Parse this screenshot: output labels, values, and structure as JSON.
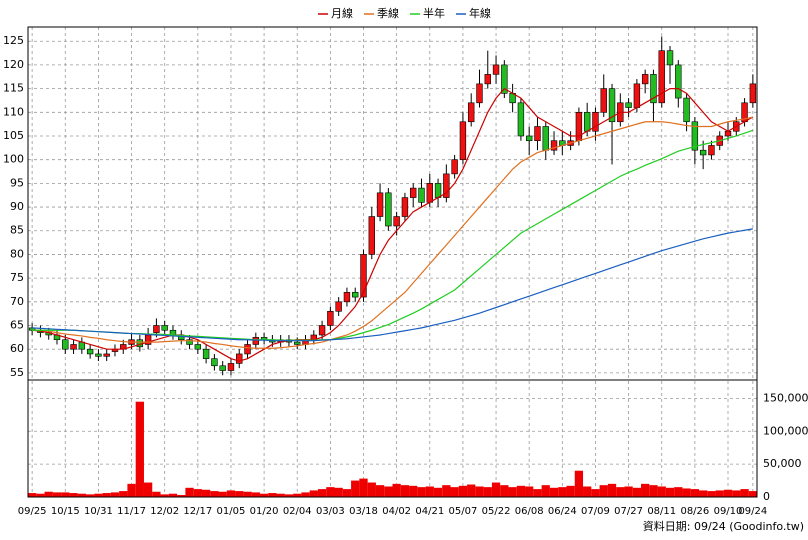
{
  "chart_data": {
    "type": "candlestick",
    "categories": [
      "09/25",
      null,
      null,
      null,
      "10/15",
      null,
      null,
      null,
      "10/31",
      null,
      null,
      null,
      "11/17",
      null,
      null,
      null,
      "12/02",
      null,
      null,
      null,
      "12/17",
      null,
      null,
      null,
      "01/05",
      null,
      null,
      null,
      "01/20",
      null,
      null,
      null,
      "02/04",
      null,
      null,
      null,
      "03/03",
      null,
      null,
      null,
      "03/18",
      null,
      null,
      null,
      "04/02",
      null,
      null,
      null,
      "04/21",
      null,
      null,
      null,
      "05/07",
      null,
      null,
      null,
      "05/22",
      null,
      null,
      null,
      "06/08",
      null,
      null,
      null,
      "06/24",
      null,
      null,
      null,
      "07/09",
      null,
      null,
      null,
      "07/27",
      null,
      null,
      null,
      "08/11",
      null,
      null,
      null,
      "08/26",
      null,
      null,
      null,
      "09/10",
      null,
      null,
      "09/24"
    ],
    "open": [
      64.5,
      64,
      63.5,
      63,
      62,
      60,
      61.5,
      60,
      59,
      58.5,
      59.5,
      60,
      61,
      62,
      61,
      63.5,
      65,
      64,
      63,
      62,
      61,
      60,
      58,
      56.5,
      55.5,
      57,
      59,
      61,
      62.5,
      62,
      61.5,
      62,
      61.5,
      61,
      62,
      63,
      65,
      68,
      70,
      72,
      71,
      80,
      88,
      93,
      86,
      88,
      92,
      94,
      91,
      95,
      92,
      97,
      100,
      108,
      112,
      116,
      118,
      120,
      114,
      112,
      105,
      104,
      107,
      102,
      104,
      103,
      104,
      110,
      106,
      110,
      115,
      108,
      112,
      111,
      116,
      118,
      112,
      123,
      120,
      113,
      108,
      102,
      101,
      103,
      105,
      106,
      108,
      112
    ],
    "high": [
      65.5,
      65,
      64.5,
      64,
      63,
      62,
      62.5,
      61,
      60,
      60,
      61,
      62,
      63.5,
      63,
      64.5,
      66.5,
      66,
      65,
      64,
      63,
      62,
      61,
      59,
      57.5,
      58,
      60,
      62,
      63.5,
      63.5,
      63,
      63,
      63,
      62.5,
      63,
      64,
      66,
      69,
      71,
      73,
      73,
      81,
      90,
      95,
      94,
      89,
      93,
      95,
      96,
      97,
      96,
      99,
      101,
      110,
      114,
      119,
      123,
      122,
      121,
      116,
      113,
      107,
      109,
      108,
      106,
      106,
      106,
      111,
      112,
      111,
      118,
      116,
      114,
      113,
      117,
      119,
      119,
      126,
      124,
      121,
      114,
      109,
      104,
      104,
      106,
      108,
      109,
      113,
      118
    ],
    "low": [
      63,
      62.5,
      62,
      61,
      59,
      59,
      59,
      58,
      57.5,
      57.5,
      58.5,
      59,
      60,
      59.5,
      60,
      62.5,
      63,
      62,
      61,
      60,
      59,
      57,
      55.5,
      54.5,
      54.5,
      56,
      58,
      60,
      61,
      60.5,
      60.5,
      60.5,
      60,
      60,
      61,
      62,
      64,
      67,
      69,
      70,
      70,
      79,
      87,
      85,
      84,
      87,
      90,
      90,
      90,
      90,
      91,
      96,
      99,
      107,
      111,
      115,
      116,
      113,
      110,
      104,
      101,
      102,
      100,
      101,
      101,
      102,
      103,
      105,
      104,
      109,
      99,
      107,
      109,
      110,
      114,
      108,
      111,
      116,
      111,
      106,
      99,
      98,
      100,
      102,
      104,
      105,
      107,
      111
    ],
    "close": [
      64,
      63.5,
      63,
      62,
      60,
      61,
      60,
      59,
      58.5,
      59,
      60,
      61,
      62,
      60.5,
      63,
      65,
      64,
      63,
      62,
      61,
      60,
      58,
      56.5,
      55.5,
      57,
      59,
      61,
      62.5,
      62,
      61.5,
      62,
      61.5,
      61,
      62,
      63,
      65,
      68,
      70,
      72,
      71,
      80,
      88,
      93,
      86,
      88,
      92,
      94,
      91,
      95,
      92,
      97,
      100,
      108,
      112,
      116,
      118,
      120,
      114,
      112,
      105,
      104,
      107,
      102,
      104,
      103,
      104,
      110,
      106,
      110,
      115,
      108,
      112,
      111,
      116,
      118,
      112,
      123,
      120,
      113,
      108,
      102,
      101,
      103,
      105,
      106,
      108,
      112,
      116
    ],
    "up_color": "#ee1111",
    "down_color": "#22bb22",
    "series": [
      {
        "name": "月線",
        "color": "#cc0000",
        "values": [
          64,
          63.8,
          63.5,
          63,
          62.5,
          62,
          61.5,
          61,
          60.5,
          60,
          60,
          60,
          60.5,
          61,
          61.5,
          62,
          62.5,
          63,
          63,
          62.5,
          62,
          61,
          60,
          59,
          58,
          57.5,
          58,
          59,
          60,
          61,
          61.5,
          61.8,
          62,
          62,
          62,
          62.5,
          63.5,
          65,
          67,
          69,
          72,
          76,
          80,
          83,
          85,
          87,
          89,
          90,
          91,
          92,
          93,
          95,
          98,
          102,
          106,
          110,
          113,
          115,
          114,
          113,
          111,
          109,
          108,
          107,
          106,
          105,
          105,
          106,
          107,
          108,
          109,
          110,
          110,
          111,
          112,
          113,
          114,
          115,
          115,
          114,
          112,
          110,
          108,
          107,
          106,
          107,
          108,
          109
        ]
      },
      {
        "name": "季線",
        "color": "#e07020",
        "values": [
          64,
          64,
          63.8,
          63.5,
          63.2,
          63,
          62.8,
          62.5,
          62.3,
          62,
          61.8,
          61.6,
          61.5,
          61.5,
          61.5,
          61.5,
          61.6,
          61.7,
          61.8,
          61.8,
          61.7,
          61.5,
          61.2,
          61,
          60.7,
          60.5,
          60.3,
          60.2,
          60.2,
          60.2,
          60.3,
          60.5,
          60.7,
          61,
          61.2,
          61.5,
          62,
          62.5,
          63,
          63.8,
          64.8,
          66,
          67.5,
          69,
          70.5,
          72,
          74,
          76,
          78,
          80,
          82,
          84,
          86,
          88,
          90,
          92,
          94,
          96,
          98,
          99.5,
          100.5,
          101.5,
          102,
          102.5,
          103,
          103.5,
          104,
          104.5,
          105,
          105.5,
          106,
          106.5,
          107,
          107.5,
          108,
          108,
          108,
          107.8,
          107.5,
          107.2,
          107,
          107,
          107,
          107.5,
          108,
          108.3,
          108.6,
          109
        ]
      },
      {
        "name": "半年",
        "color": "#22cc22",
        "values": [
          64,
          64,
          64,
          64,
          64,
          64,
          63.9,
          63.8,
          63.7,
          63.6,
          63.5,
          63.4,
          63.3,
          63.3,
          63.2,
          63.2,
          63.1,
          63,
          62.9,
          62.8,
          62.7,
          62.6,
          62.5,
          62.4,
          62.3,
          62.2,
          62.1,
          62,
          62,
          62,
          61.9,
          61.9,
          61.9,
          61.9,
          61.9,
          62,
          62,
          62.3,
          62.6,
          63,
          63.5,
          64,
          64.6,
          65.2,
          66,
          66.8,
          67.6,
          68.5,
          69.5,
          70.5,
          71.5,
          72.5,
          74,
          75.5,
          77,
          78.5,
          80,
          81.5,
          83,
          84.5,
          85.5,
          86.5,
          87.5,
          88.5,
          89.5,
          90.5,
          91.5,
          92.5,
          93.5,
          94.5,
          95.5,
          96.5,
          97.3,
          98,
          98.8,
          99.5,
          100.2,
          101,
          101.8,
          102.3,
          102.8,
          103.2,
          103.6,
          104,
          104.5,
          105,
          105.6,
          106.2
        ]
      },
      {
        "name": "年線",
        "color": "#1a5fc0",
        "values": [
          64.5,
          64.4,
          64.3,
          64.2,
          64.1,
          64,
          63.9,
          63.8,
          63.7,
          63.6,
          63.5,
          63.4,
          63.3,
          63.2,
          63.1,
          63,
          62.9,
          62.8,
          62.7,
          62.6,
          62.5,
          62.4,
          62.3,
          62.2,
          62.1,
          62,
          62,
          61.9,
          61.9,
          61.8,
          61.8,
          61.8,
          61.8,
          61.8,
          61.8,
          61.9,
          62,
          62.1,
          62.2,
          62.4,
          62.6,
          62.8,
          63,
          63.3,
          63.6,
          63.9,
          64.2,
          64.5,
          64.9,
          65.3,
          65.7,
          66.1,
          66.6,
          67.1,
          67.6,
          68.2,
          68.8,
          69.4,
          70,
          70.6,
          71.2,
          71.8,
          72.4,
          73,
          73.6,
          74.2,
          74.8,
          75.4,
          76,
          76.6,
          77.2,
          77.8,
          78.4,
          79,
          79.6,
          80.2,
          80.8,
          81.3,
          81.8,
          82.3,
          82.8,
          83.3,
          83.7,
          84.1,
          84.5,
          84.8,
          85.1,
          85.4
        ]
      }
    ],
    "ylim": [
      53.5,
      128
    ],
    "yticks": [
      55,
      60,
      65,
      70,
      75,
      80,
      85,
      90,
      95,
      100,
      105,
      110,
      115,
      120,
      125
    ],
    "volume": {
      "color": "#ee0000",
      "values": [
        6000,
        5000,
        8000,
        7000,
        7000,
        6000,
        5000,
        4000,
        5000,
        6000,
        7000,
        9000,
        20000,
        145000,
        22000,
        8000,
        4000,
        5000,
        3000,
        14000,
        12000,
        11000,
        9000,
        8000,
        10000,
        9000,
        8000,
        7000,
        5000,
        6000,
        5000,
        4000,
        5000,
        7000,
        10000,
        12000,
        15000,
        14000,
        12000,
        25000,
        28000,
        22000,
        18000,
        16000,
        20000,
        18000,
        17000,
        15000,
        16000,
        14000,
        18000,
        15000,
        17000,
        19000,
        16000,
        15000,
        22000,
        18000,
        15000,
        17000,
        16000,
        12000,
        18000,
        14000,
        15000,
        17000,
        40000,
        16000,
        12000,
        18000,
        20000,
        15000,
        16000,
        14000,
        20000,
        18000,
        16000,
        14000,
        15000,
        13000,
        12000,
        10000,
        9000,
        10000,
        11000,
        10000,
        12000,
        9000
      ],
      "ylim": [
        0,
        178000
      ],
      "yticks": [
        0,
        {
          "value": 50000,
          "label": "50,000"
        },
        {
          "value": 100000,
          "label": "100,000"
        },
        {
          "value": 150000,
          "label": "150,000"
        }
      ]
    },
    "grid": true,
    "source": "資料日期: 09/24 (Goodinfo.tw)"
  }
}
